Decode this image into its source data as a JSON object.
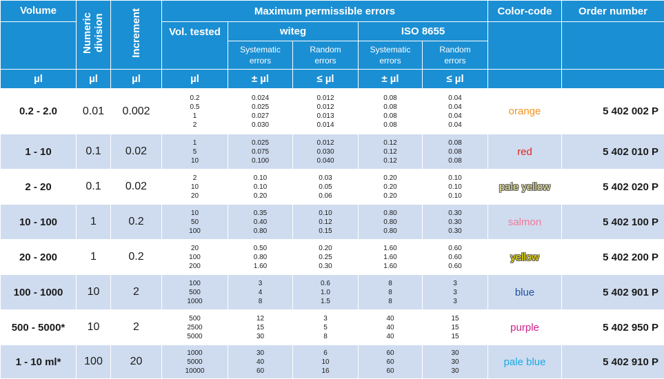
{
  "header": {
    "volume": "Volume",
    "numeric_division": "Numeric division",
    "increment": "Increment",
    "max_errors": "Maximum permissible errors",
    "color_code": "Color-code",
    "order_number": "Order number",
    "vol_tested": "Vol. tested",
    "witeg": "witeg",
    "iso": "ISO 8655",
    "systematic": "Systematic errors",
    "random": "Random errors",
    "units": {
      "volume": "µl",
      "numeric_division": "µl",
      "increment": "µl",
      "vol_tested": "µl",
      "witeg_sys": "± µl",
      "witeg_rand": "≤ µl",
      "iso_sys": "± µl",
      "iso_rand": "≤ µl"
    }
  },
  "rows": [
    {
      "volume": "0.2 - 2.0",
      "division": "0.01",
      "increment": "0.002",
      "tested": [
        "0.2",
        "0.5",
        "1",
        "2"
      ],
      "witeg_sys": [
        "0.024",
        "0.025",
        "0.027",
        "0.030"
      ],
      "witeg_rand": [
        "0.012",
        "0.012",
        "0.013",
        "0.014"
      ],
      "iso_sys": [
        "0.08",
        "0.08",
        "0.08",
        "0.08"
      ],
      "iso_rand": [
        "0.04",
        "0.04",
        "0.04",
        "0.04"
      ],
      "color": "orange",
      "color_hex": "#f39220",
      "outlined": false,
      "order": "5 402 002 P"
    },
    {
      "volume": "1 - 10",
      "division": "0.1",
      "increment": "0.02",
      "tested": [
        "1",
        "5",
        "10"
      ],
      "witeg_sys": [
        "0.025",
        "0.075",
        "0.100"
      ],
      "witeg_rand": [
        "0.012",
        "0.030",
        "0.040"
      ],
      "iso_sys": [
        "0.12",
        "0.12",
        "0.12"
      ],
      "iso_rand": [
        "0.08",
        "0.08",
        "0.08"
      ],
      "color": "red",
      "color_hex": "#e2231a",
      "outlined": false,
      "order": "5 402 010 P"
    },
    {
      "volume": "2 - 20",
      "division": "0.1",
      "increment": "0.02",
      "tested": [
        "2",
        "10",
        "20"
      ],
      "witeg_sys": [
        "0.10",
        "0.10",
        "0.20"
      ],
      "witeg_rand": [
        "0.03",
        "0.05",
        "0.06"
      ],
      "iso_sys": [
        "0.20",
        "0.20",
        "0.20"
      ],
      "iso_rand": [
        "0.10",
        "0.10",
        "0.10"
      ],
      "color": "pale yellow",
      "color_hex": "#f6f0a0",
      "outlined": true,
      "order": "5 402 020 P"
    },
    {
      "volume": "10 - 100",
      "division": "1",
      "increment": "0.2",
      "tested": [
        "10",
        "50",
        "100"
      ],
      "witeg_sys": [
        "0.35",
        "0.40",
        "0.80"
      ],
      "witeg_rand": [
        "0.10",
        "0.12",
        "0.15"
      ],
      "iso_sys": [
        "0.80",
        "0.80",
        "0.80"
      ],
      "iso_rand": [
        "0.30",
        "0.30",
        "0.30"
      ],
      "color": "salmon",
      "color_hex": "#f07a9a",
      "outlined": false,
      "order": "5 402 100 P"
    },
    {
      "volume": "20 - 200",
      "division": "1",
      "increment": "0.2",
      "tested": [
        "20",
        "100",
        "200"
      ],
      "witeg_sys": [
        "0.50",
        "0.80",
        "1.60"
      ],
      "witeg_rand": [
        "0.20",
        "0.25",
        "0.30"
      ],
      "iso_sys": [
        "1.60",
        "1.60",
        "1.60"
      ],
      "iso_rand": [
        "0.60",
        "0.60",
        "0.60"
      ],
      "color": "yellow",
      "color_hex": "#f5e400",
      "outlined": true,
      "order": "5 402 200 P"
    },
    {
      "volume": "100 - 1000",
      "division": "10",
      "increment": "2",
      "tested": [
        "100",
        "500",
        "1000"
      ],
      "witeg_sys": [
        "3",
        "4",
        "8"
      ],
      "witeg_rand": [
        "0.6",
        "1.0",
        "1.5"
      ],
      "iso_sys": [
        "8",
        "8",
        "8"
      ],
      "iso_rand": [
        "3",
        "3",
        "3"
      ],
      "color": "blue",
      "color_hex": "#1f4fa3",
      "outlined": false,
      "order": "5 402 901 P"
    },
    {
      "volume": "500 - 5000*",
      "division": "10",
      "increment": "2",
      "tested": [
        "500",
        "2500",
        "5000"
      ],
      "witeg_sys": [
        "12",
        "15",
        "30"
      ],
      "witeg_rand": [
        "3",
        "5",
        "8"
      ],
      "iso_sys": [
        "40",
        "40",
        "40"
      ],
      "iso_rand": [
        "15",
        "15",
        "15"
      ],
      "color": "purple",
      "color_hex": "#d0208a",
      "outlined": false,
      "order": "5 402 950 P"
    },
    {
      "volume": "1 - 10 ml*",
      "division": "100",
      "increment": "20",
      "tested": [
        "1000",
        "5000",
        "10000"
      ],
      "witeg_sys": [
        "30",
        "40",
        "60"
      ],
      "witeg_rand": [
        "6",
        "10",
        "16"
      ],
      "iso_sys": [
        "60",
        "60",
        "60"
      ],
      "iso_rand": [
        "30",
        "30",
        "30"
      ],
      "color": "pale blue",
      "color_hex": "#1aa9e3",
      "outlined": false,
      "order": "5 402 910 P"
    }
  ]
}
